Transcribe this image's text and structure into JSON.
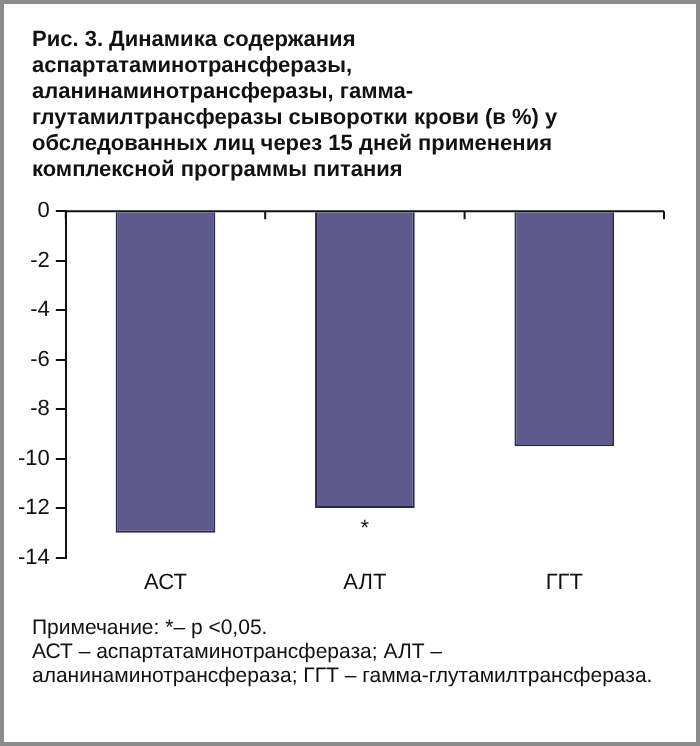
{
  "chart_data": {
    "type": "bar",
    "title": "Рис. 3. Динамика содержания аспартатаминотрансферазы, аланинаминотрансферазы, гамма-глутамилтрансферазы сыворотки крови (в %) у обследованных лиц через 15 дней применения комплексной программы питания",
    "categories": [
      "АСТ",
      "АЛТ",
      "ГГТ"
    ],
    "values": [
      -13,
      -12,
      -9.5
    ],
    "color": "#5f5a8e",
    "ylim": [
      -14,
      0
    ],
    "yticks": [
      0,
      -2,
      -4,
      -6,
      -8,
      -10,
      -12,
      -14
    ],
    "grid": false,
    "legend": false,
    "annotations": [
      {
        "text": "*",
        "x": "АЛТ",
        "y": -12
      },
      "Примечание: *– p <0,05.",
      "АСТ – аспартатаминотрансфераза; АЛТ – аланинаминотрансфераза; ГГТ – гамма-глутамилтрансфераза."
    ]
  }
}
